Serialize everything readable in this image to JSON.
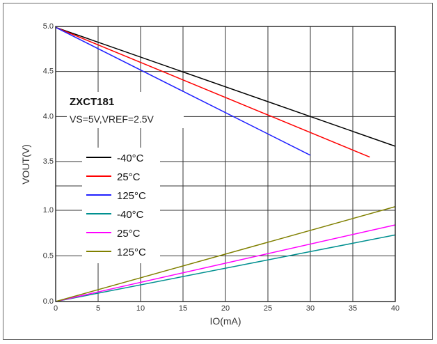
{
  "chart_data": {
    "type": "line",
    "xlabel": "IO(mA)",
    "ylabel": "VOUT(V)",
    "xlim": [
      0,
      40
    ],
    "x_ticks": [
      "0",
      "5",
      "10",
      "15",
      "20",
      "25",
      "30",
      "35",
      "40"
    ],
    "y_ticks": [
      "0.0",
      "0.5",
      "1.0",
      "3.5",
      "4.0",
      "4.5",
      "5.0"
    ],
    "axis_break": "lower segment 0.0 to 1.0 V, upper segment 3.5 to 5.0 V",
    "grid": true,
    "annotation": {
      "title": "ZXCT181",
      "subtitle": "VS=5V,VREF=2.5V"
    },
    "legend_position": "left-middle",
    "series": [
      {
        "name": "-40°C",
        "color": "#000000",
        "x": [
          0,
          40
        ],
        "y": [
          4.99,
          3.67
        ]
      },
      {
        "name": "25°C",
        "color": "#ff0000",
        "x": [
          0,
          37
        ],
        "y": [
          4.99,
          3.55
        ]
      },
      {
        "name": "125°C",
        "color": "#2020ff",
        "x": [
          0,
          30
        ],
        "y": [
          4.99,
          3.57
        ]
      },
      {
        "name": "-40°C",
        "color": "#009090",
        "x": [
          0,
          40
        ],
        "y": [
          0.0,
          0.73
        ]
      },
      {
        "name": "25°C",
        "color": "#ff00ff",
        "x": [
          0,
          40
        ],
        "y": [
          0.0,
          0.84
        ]
      },
      {
        "name": "125°C",
        "color": "#808000",
        "x": [
          0,
          40
        ],
        "y": [
          0.0,
          1.04
        ]
      }
    ]
  }
}
